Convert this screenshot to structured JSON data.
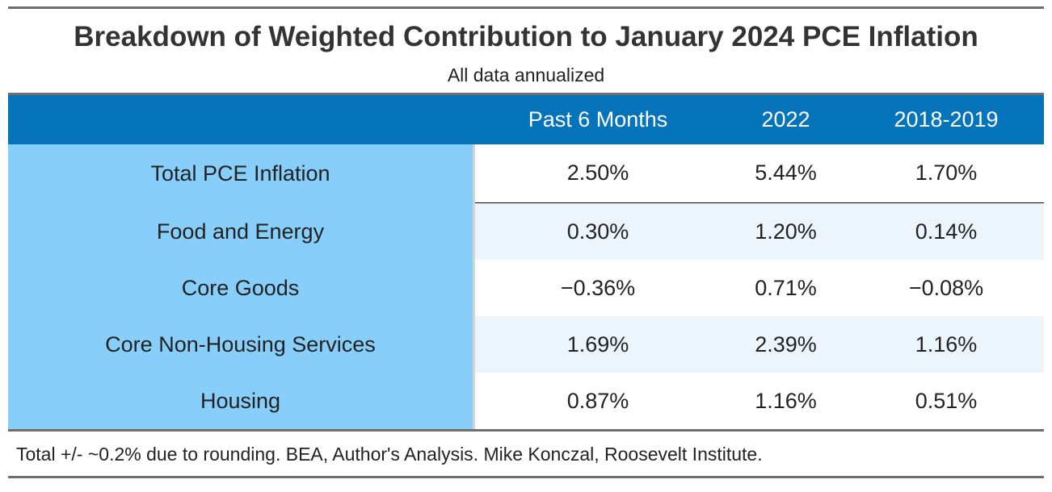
{
  "chart_data": {
    "type": "table",
    "title": "Breakdown of Weighted Contribution to January 2024 PCE Inflation",
    "subtitle": "All data annualized",
    "columns": [
      "",
      "Past 6 Months",
      "2022",
      "2018-2019"
    ],
    "rows": [
      {
        "label": "Total PCE Inflation",
        "values": [
          "2.50%",
          "5.44%",
          "1.70%"
        ]
      },
      {
        "label": "Food and Energy",
        "values": [
          "0.30%",
          "1.20%",
          "0.14%"
        ]
      },
      {
        "label": "Core Goods",
        "values": [
          "−0.36%",
          "0.71%",
          "−0.08%"
        ]
      },
      {
        "label": "Core Non-Housing Services",
        "values": [
          "1.69%",
          "2.39%",
          "1.16%"
        ]
      },
      {
        "label": "Housing",
        "values": [
          "0.87%",
          "1.16%",
          "0.51%"
        ]
      }
    ],
    "footer": "Total +/- ~0.2% due to rounding. BEA, Author's Analysis. Mike Konczal, Roosevelt Institute.",
    "colors": {
      "header_bg": "#0574bb",
      "header_text": "#ffffff",
      "stub_bg": "#87cffa",
      "stripe_bg": "#edf5fc"
    }
  }
}
